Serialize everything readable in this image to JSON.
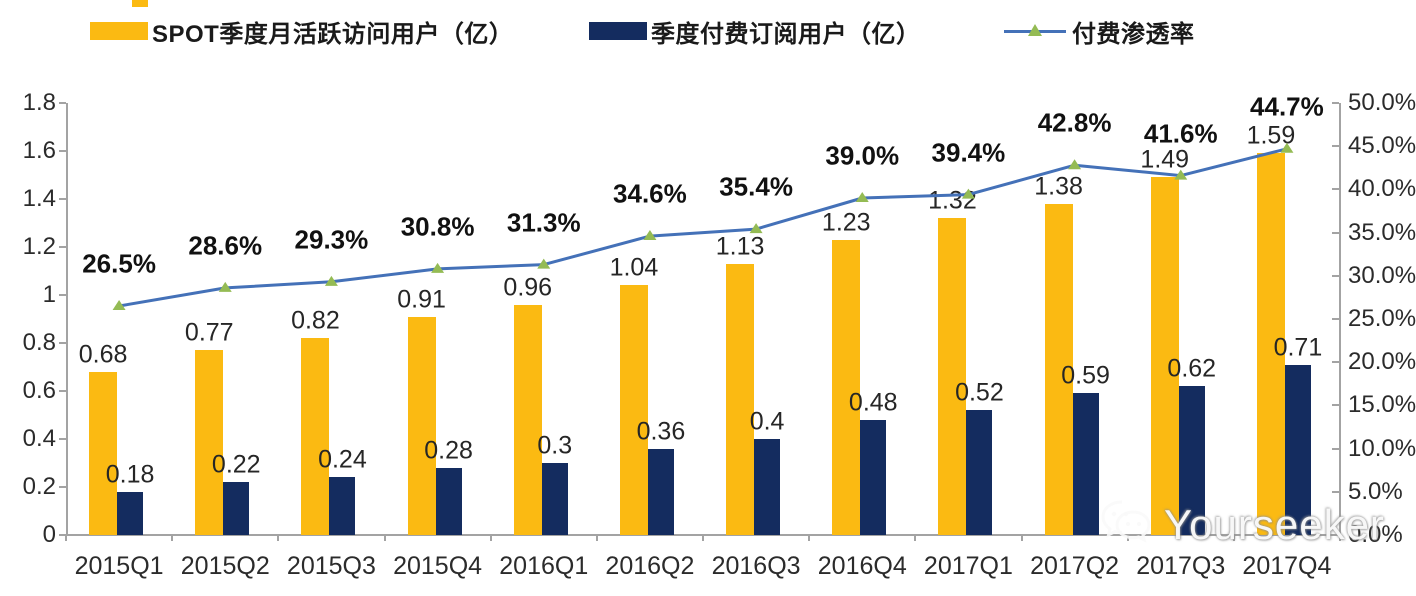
{
  "legend": {
    "items": [
      {
        "label": "SPOT季度月活跃访问用户（亿）",
        "swatch": "bar",
        "color": "#FBBA12"
      },
      {
        "label": "季度付费订阅用户（亿）",
        "swatch": "bar",
        "color": "#142C5F"
      },
      {
        "label": "付费渗透率",
        "swatch": "line-triangle",
        "line_color": "#4471B8",
        "marker_color": "#94BB54"
      }
    ]
  },
  "chart_data": {
    "type": "bar+line",
    "categories": [
      "2015Q1",
      "2015Q2",
      "2015Q3",
      "2015Q4",
      "2016Q1",
      "2016Q2",
      "2016Q3",
      "2016Q4",
      "2017Q1",
      "2017Q2",
      "2017Q3",
      "2017Q4"
    ],
    "series": [
      {
        "name": "SPOT季度月活跃访问用户（亿）",
        "type": "bar",
        "color": "#FBBA12",
        "values": [
          0.68,
          0.77,
          0.82,
          0.91,
          0.96,
          1.04,
          1.13,
          1.23,
          1.32,
          1.38,
          1.49,
          1.59
        ],
        "labels": [
          "0.68",
          "0.77",
          "0.82",
          "0.91",
          "0.96",
          "1.04",
          "1.13",
          "1.23",
          "1.32",
          "1.38",
          "1.49",
          "1.59"
        ]
      },
      {
        "name": "季度付费订阅用户（亿）",
        "type": "bar",
        "color": "#142C5F",
        "values": [
          0.18,
          0.22,
          0.24,
          0.28,
          0.3,
          0.36,
          0.4,
          0.48,
          0.52,
          0.59,
          0.62,
          0.71
        ],
        "labels": [
          "0.18",
          "0.22",
          "0.24",
          "0.28",
          "0.3",
          "0.36",
          "0.4",
          "0.48",
          "0.52",
          "0.59",
          "0.62",
          "0.71"
        ]
      },
      {
        "name": "付费渗透率",
        "type": "line",
        "color": "#4471B8",
        "marker": "triangle",
        "marker_color": "#94BB54",
        "axis": "right",
        "values_percent": [
          26.5,
          28.6,
          29.3,
          30.8,
          31.3,
          34.6,
          35.4,
          39.0,
          39.4,
          42.8,
          41.6,
          44.7
        ],
        "labels": [
          "26.5%",
          "28.6%",
          "29.3%",
          "30.8%",
          "31.3%",
          "34.6%",
          "35.4%",
          "39.0%",
          "39.4%",
          "42.8%",
          "41.6%",
          "44.7%"
        ]
      }
    ],
    "left_axis": {
      "min": 0,
      "max": 1.8,
      "step": 0.2,
      "labels": [
        "0",
        "0.2",
        "0.4",
        "0.6",
        "0.8",
        "1",
        "1.2",
        "1.4",
        "1.6",
        "1.8"
      ]
    },
    "right_axis": {
      "min": 0,
      "max": 50,
      "step": 5,
      "labels": [
        "0.0%",
        "5.0%",
        "10.0%",
        "15.0%",
        "20.0%",
        "25.0%",
        "30.0%",
        "35.0%",
        "40.0%",
        "45.0%",
        "50.0%"
      ]
    },
    "grid": false,
    "legend_position": "top"
  },
  "watermark": {
    "text": "Yourseeker",
    "icon": "wechat-icon"
  }
}
